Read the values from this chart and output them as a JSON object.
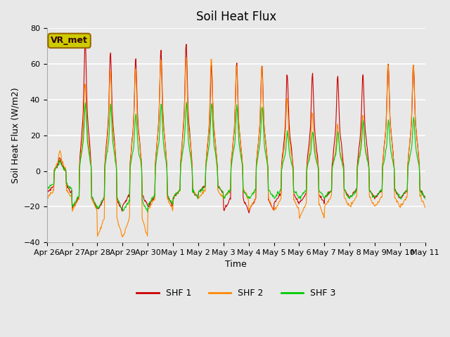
{
  "title": "Soil Heat Flux",
  "ylabel": "Soil Heat Flux (W/m2)",
  "xlabel": "Time",
  "ylim": [
    -40,
    80
  ],
  "plot_bg_color": "#e8e8e8",
  "colors": {
    "SHF 1": "#cc0000",
    "SHF 2": "#ff8800",
    "SHF 3": "#00cc00"
  },
  "annotation_text": "VR_met",
  "annotation_bg": "#cccc00",
  "annotation_border": "#996600",
  "x_tick_labels": [
    "Apr 26",
    "Apr 27",
    "Apr 28",
    "Apr 29",
    "Apr 30",
    "May 1",
    "May 2",
    "May 3",
    "May 4",
    "May 5",
    "May 6",
    "May 7",
    "May 8",
    "May 9",
    "May 10",
    "May 11"
  ],
  "n_days": 15,
  "points_per_day": 48,
  "shf1_peaks": [
    7.0,
    67.0,
    61.0,
    58.0,
    62.0,
    65.0,
    54.0,
    55.0,
    54.0,
    50.0,
    50.0,
    49.0,
    50.0,
    55.0,
    55.0
  ],
  "shf2_peaks": [
    11.0,
    45.0,
    52.0,
    53.0,
    58.0,
    58.0,
    58.0,
    55.0,
    54.0,
    37.0,
    30.0,
    24.0,
    29.0,
    55.0,
    55.0
  ],
  "shf3_peaks": [
    5.0,
    35.0,
    34.0,
    29.0,
    35.0,
    35.0,
    35.0,
    33.0,
    33.0,
    20.0,
    20.0,
    20.0,
    26.0,
    26.0,
    27.0
  ],
  "shf1_nights": [
    -12.0,
    -21.0,
    -22.0,
    -19.0,
    -20.0,
    -15.0,
    -12.0,
    -22.0,
    -22.0,
    -18.0,
    -18.0,
    -15.0,
    -15.0,
    -15.0,
    -15.0
  ],
  "shf2_nights": [
    -15.0,
    -22.0,
    -37.0,
    -37.0,
    -22.0,
    -15.0,
    -15.0,
    -15.0,
    -22.0,
    -22.0,
    -26.0,
    -20.0,
    -20.0,
    -20.0,
    -20.0
  ],
  "shf3_nights": [
    -10.0,
    -20.0,
    -21.0,
    -23.0,
    -19.0,
    -15.0,
    -12.0,
    -15.0,
    -15.0,
    -15.0,
    -15.0,
    -15.0,
    -15.0,
    -15.0,
    -15.0
  ]
}
